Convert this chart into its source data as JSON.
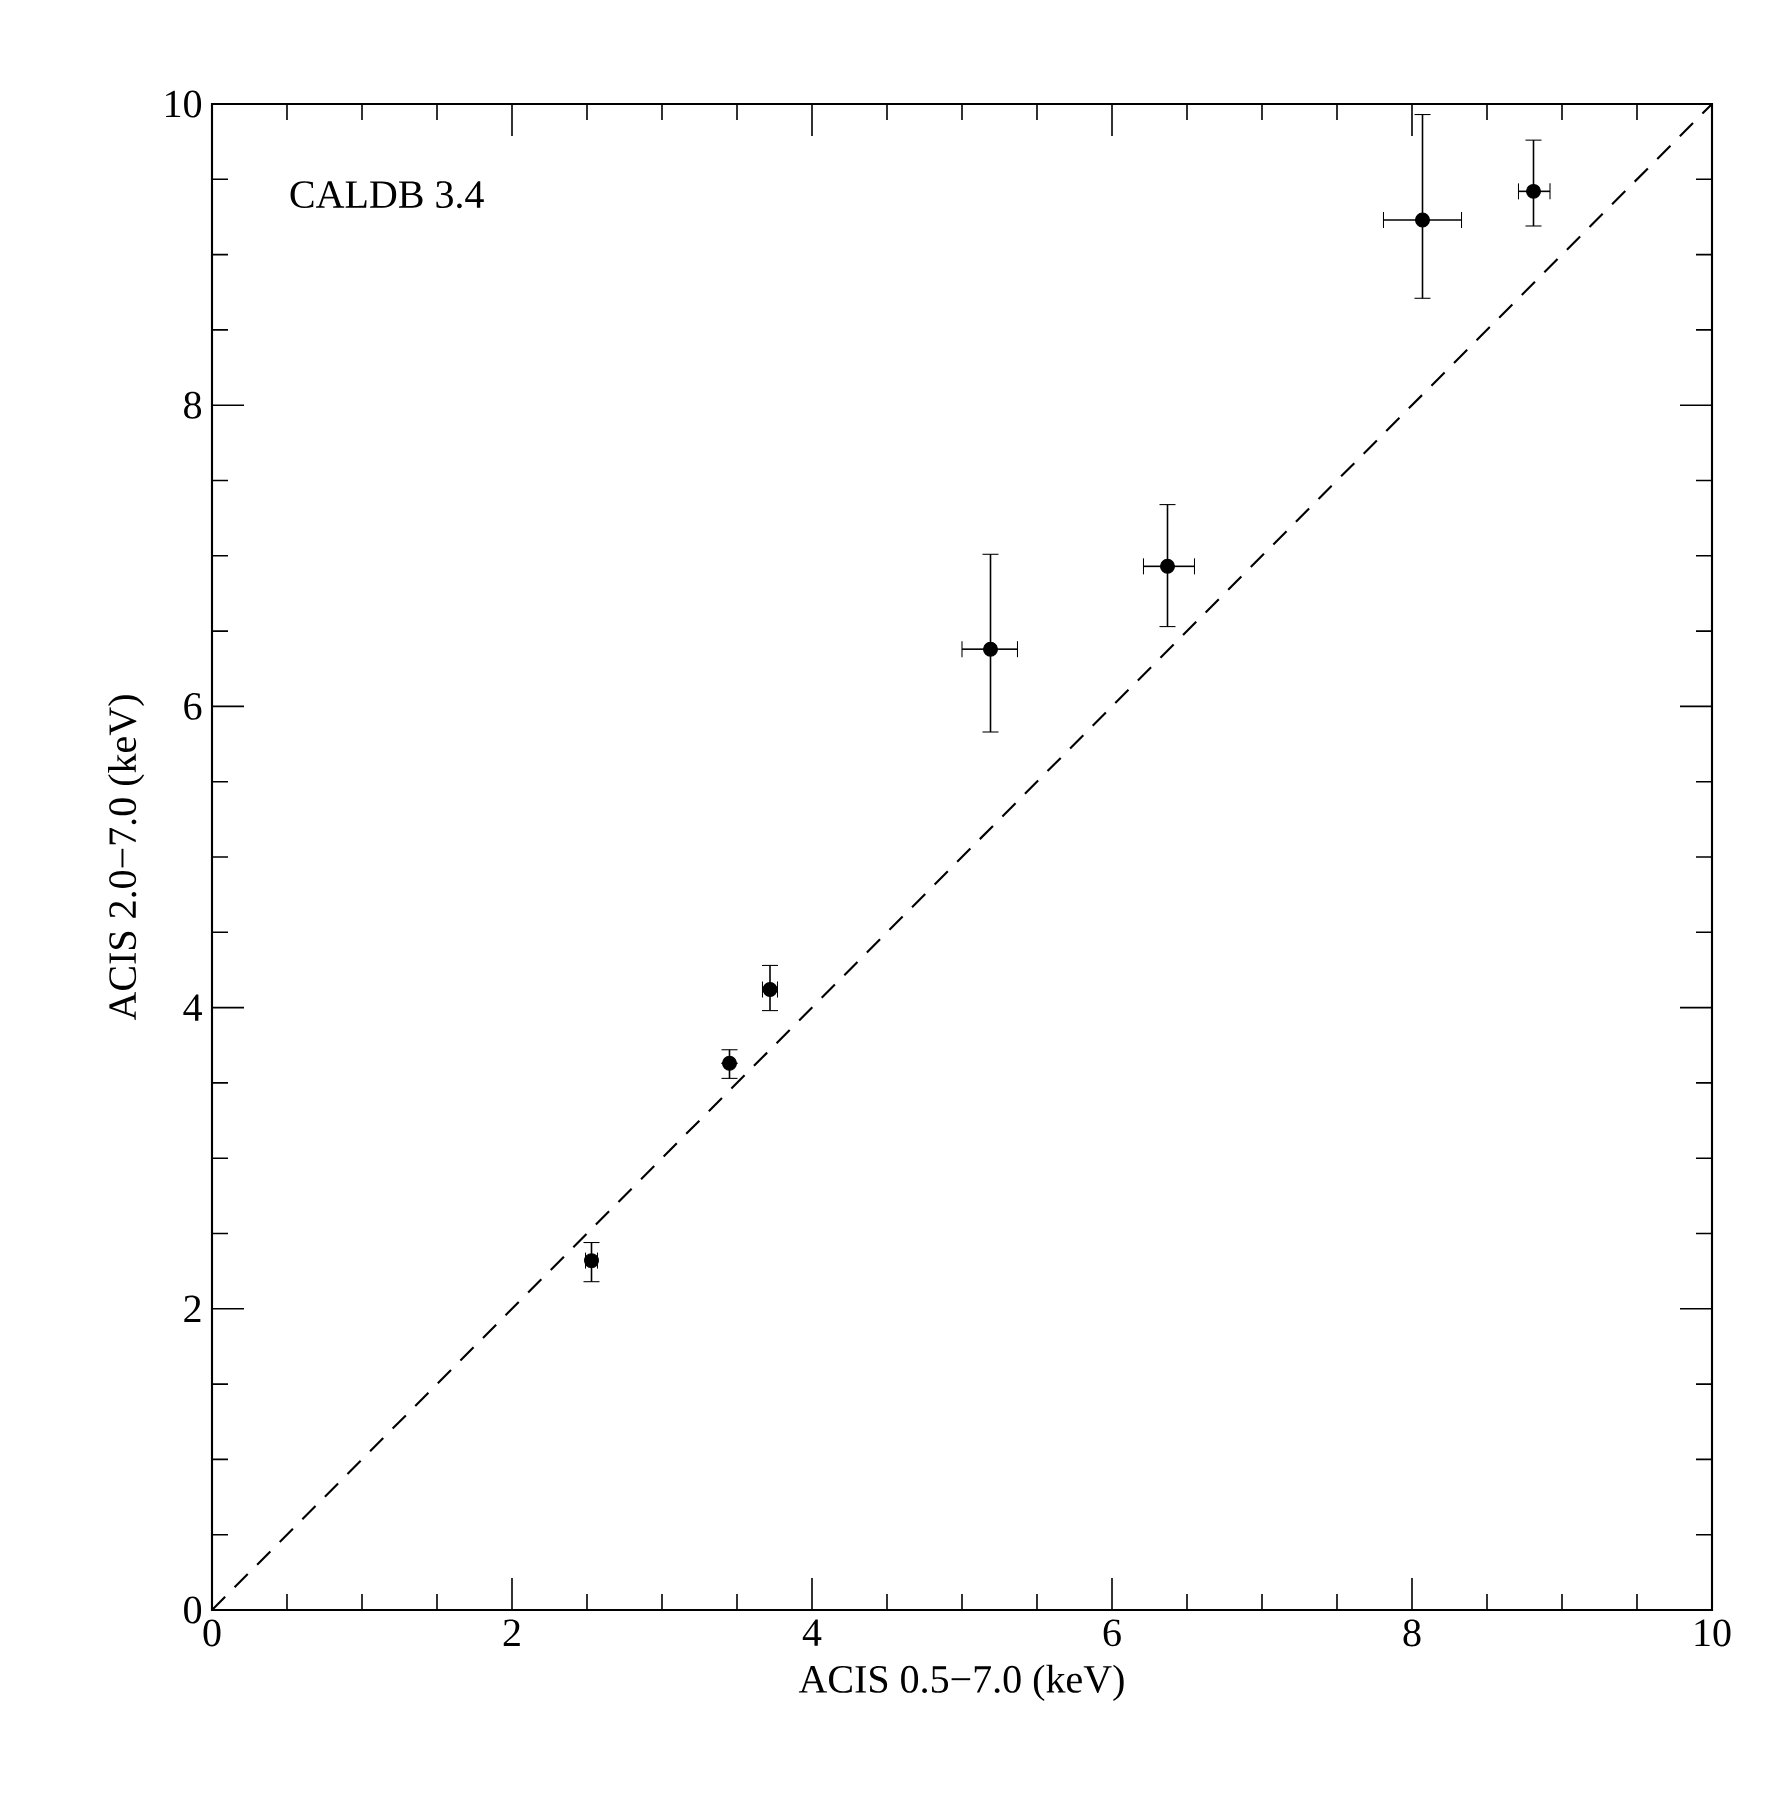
{
  "chart_data": {
    "type": "scatter",
    "xlabel": "ACIS 0.5−7.0 (keV)",
    "ylabel": "ACIS 2.0−7.0 (keV)",
    "annotations": [
      "CALDB 3.4"
    ],
    "xlim": [
      0,
      10
    ],
    "ylim": [
      0,
      10
    ],
    "xticks": [
      0,
      2,
      4,
      6,
      8,
      10
    ],
    "yticks": [
      0,
      2,
      4,
      6,
      8,
      10
    ],
    "grid": false,
    "series": [
      {
        "color": "#000000",
        "marker": "circle",
        "x": [
          2.53,
          3.45,
          3.72,
          5.19,
          6.37,
          8.07,
          8.81
        ],
        "values": [
          2.32,
          3.63,
          4.12,
          6.38,
          6.93,
          9.23,
          9.42
        ],
        "errors": [
          [
            2.18,
            2.44
          ],
          [
            3.53,
            3.72
          ],
          [
            3.98,
            4.28
          ],
          [
            5.83,
            7.01
          ],
          [
            6.53,
            7.34
          ],
          [
            8.71,
            9.93
          ],
          [
            9.19,
            9.76
          ]
        ],
        "xerrors": [
          [
            2.49,
            2.57
          ],
          null,
          [
            3.67,
            3.77
          ],
          [
            5.0,
            5.37
          ],
          [
            6.21,
            6.55
          ],
          [
            7.81,
            8.33
          ],
          [
            8.71,
            8.92
          ]
        ]
      },
      {
        "type": "line",
        "color": "#000000",
        "line_style": "dashed",
        "marker": "none",
        "x": [
          0,
          10
        ],
        "values": [
          0,
          10
        ]
      }
    ]
  }
}
